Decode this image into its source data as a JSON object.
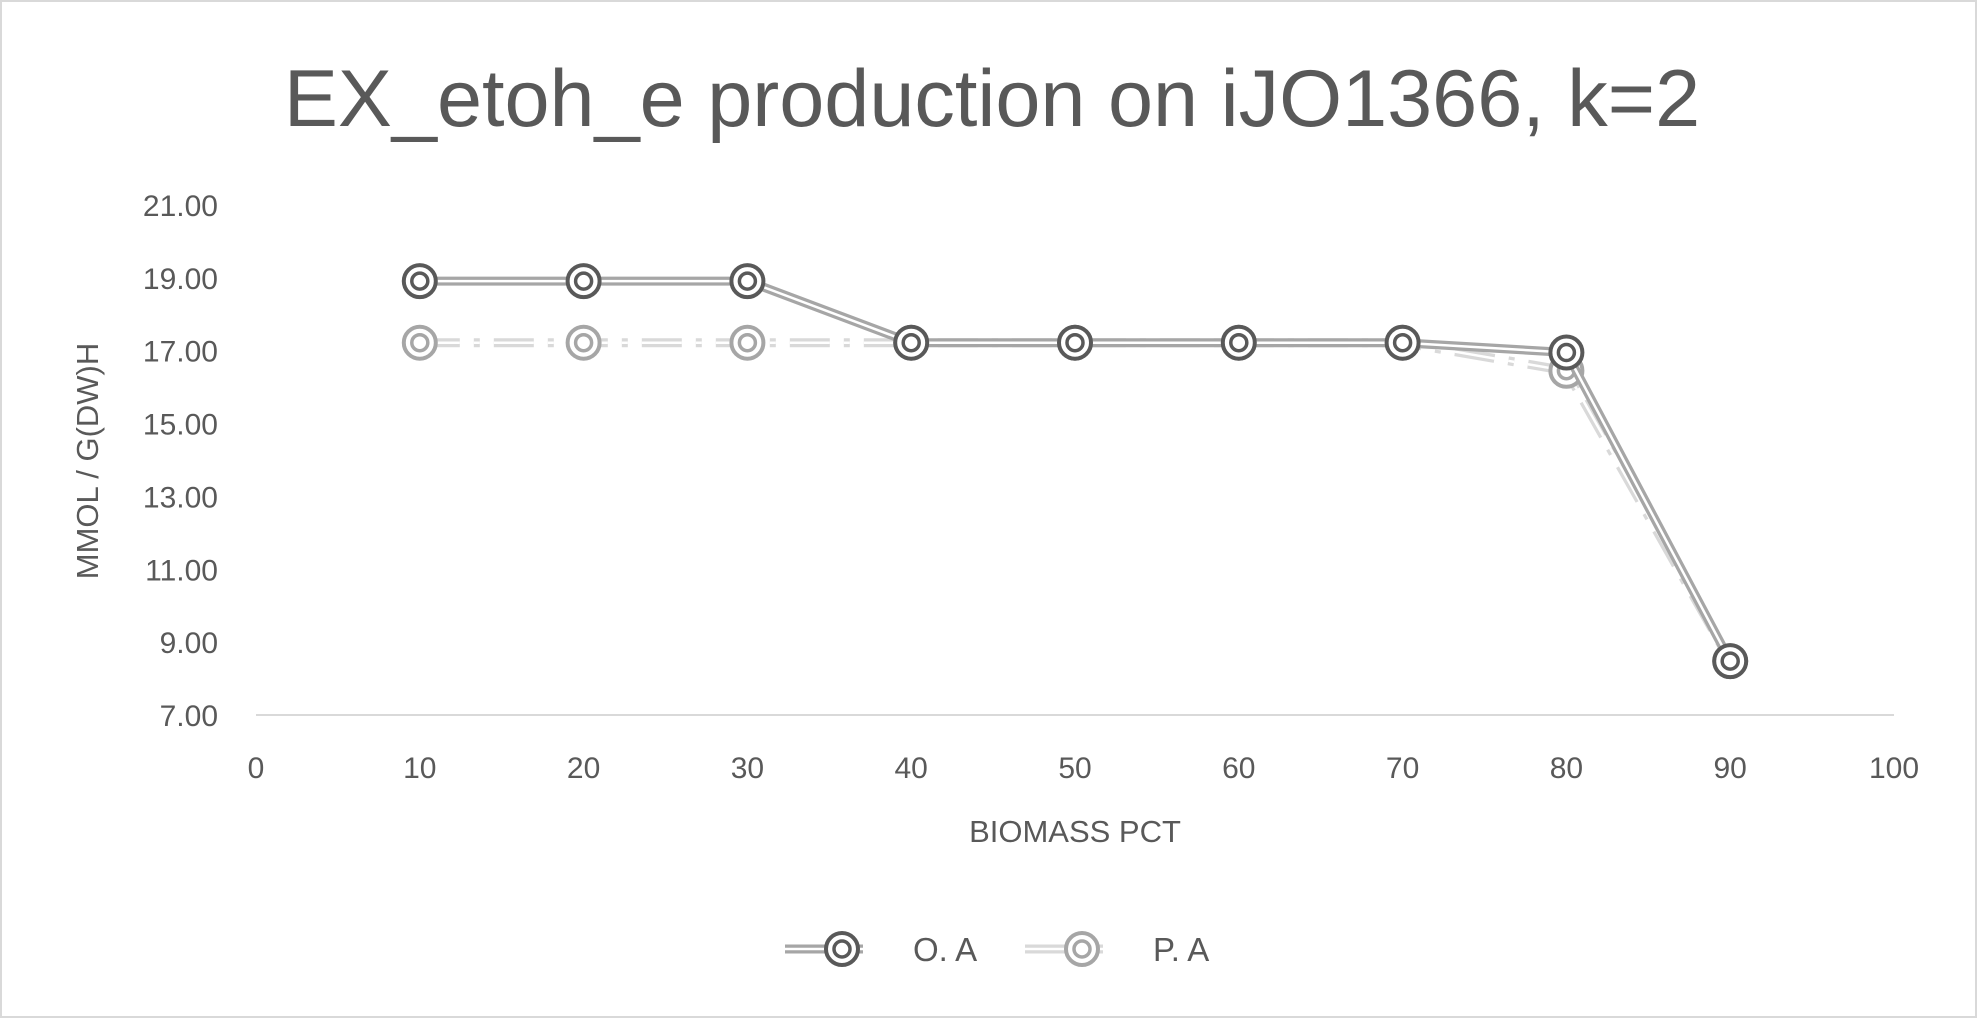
{
  "chart_data": {
    "type": "line",
    "title": "EX_etoh_e production on iJO1366, k=2",
    "xlabel": "BIOMASS PCT",
    "ylabel": "MMOL / G(DW)H",
    "xlim": [
      0,
      100
    ],
    "ylim": [
      7,
      21
    ],
    "x_ticks": [
      "0",
      "10",
      "20",
      "30",
      "40",
      "50",
      "60",
      "70",
      "80",
      "90",
      "100"
    ],
    "y_ticks": [
      "7.00",
      "9.00",
      "11.00",
      "13.00",
      "15.00",
      "17.00",
      "19.00",
      "21.00"
    ],
    "x": [
      10,
      20,
      30,
      40,
      50,
      60,
      70,
      80,
      90
    ],
    "grid": "horizontal axis line only",
    "legend_position": "bottom",
    "series": [
      {
        "name": "O. A",
        "values": [
          18.91,
          18.91,
          18.91,
          17.22,
          17.22,
          17.22,
          17.22,
          16.95,
          8.48
        ],
        "color": "#a6a6a6",
        "marker_color": "#595959",
        "style": "solid-double"
      },
      {
        "name": "P. A",
        "values": [
          17.22,
          17.22,
          17.22,
          17.22,
          17.22,
          17.22,
          17.22,
          16.45,
          8.48
        ],
        "color": "#d9d9d9",
        "marker_color": "#a6a6a6",
        "style": "dash-dot-double"
      }
    ]
  }
}
